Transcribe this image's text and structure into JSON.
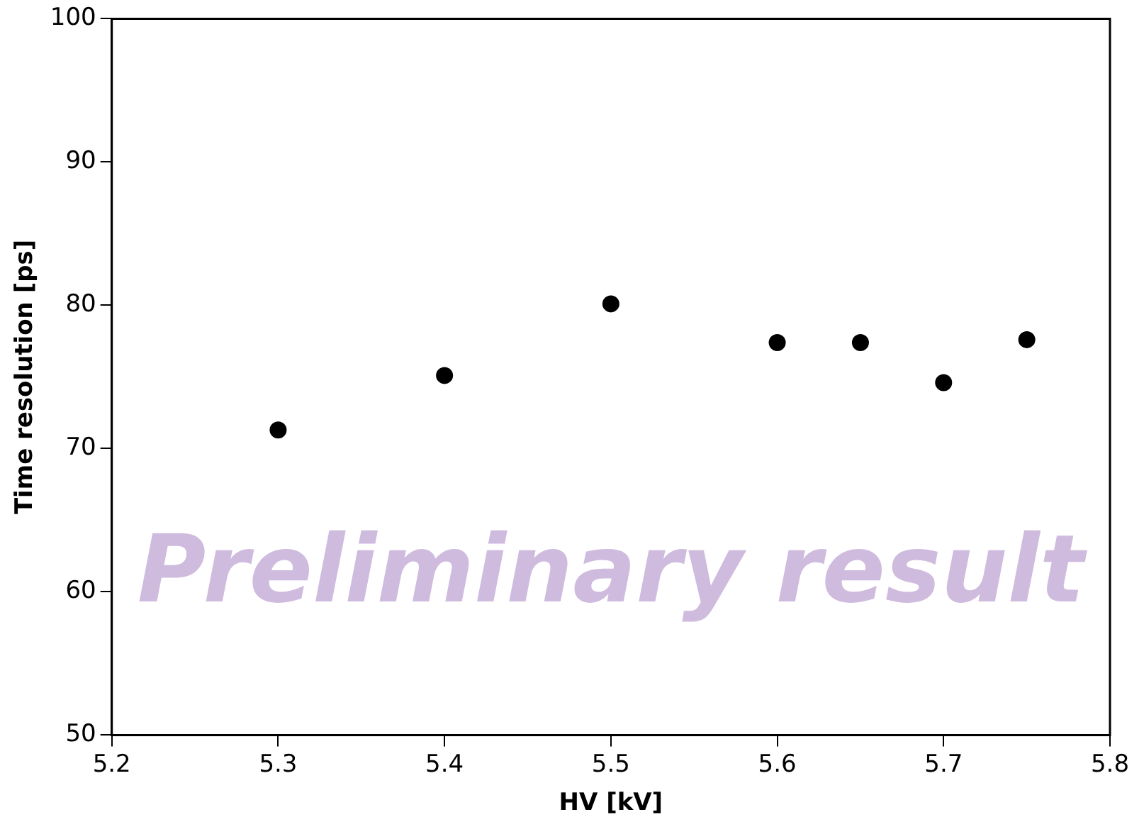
{
  "chart_data": {
    "type": "scatter",
    "xlabel": "HV [kV]",
    "ylabel": "Time resolution [ps]",
    "x": [
      5.3,
      5.4,
      5.5,
      5.6,
      5.65,
      5.7,
      5.75
    ],
    "series": [
      {
        "color": "#000000",
        "values": [
          71.3,
          75.1,
          80.1,
          77.4,
          77.4,
          74.6,
          77.6
        ]
      }
    ],
    "xlim": [
      5.2,
      5.8
    ],
    "xticks": [
      {
        "value": 5.2,
        "label": "5.2"
      },
      {
        "value": 5.3,
        "label": "5.3"
      },
      {
        "value": 5.4,
        "label": "5.4"
      },
      {
        "value": 5.5,
        "label": "5.5"
      },
      {
        "value": 5.6,
        "label": "5.6"
      },
      {
        "value": 5.7,
        "label": "5.7"
      },
      {
        "value": 5.8,
        "label": "5.8"
      }
    ],
    "ylim": [
      50,
      100
    ],
    "yticks": [
      50,
      60,
      70,
      80,
      90,
      100
    ],
    "grid": false,
    "legend": false,
    "marker": "circle",
    "annotations": [
      "Preliminary result"
    ]
  }
}
